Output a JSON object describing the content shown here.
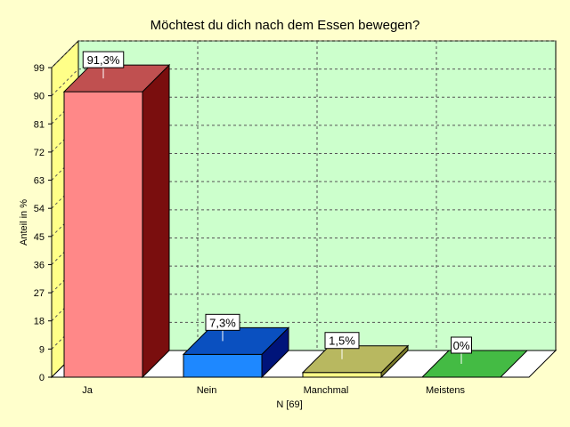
{
  "chart_data": {
    "type": "bar",
    "title": "Möchtest du dich nach dem Essen bewegen?",
    "xlabel": "N [69]",
    "ylabel": "Anteil in %",
    "ylim": [
      0,
      99
    ],
    "yticks": [
      0,
      9,
      18,
      27,
      36,
      45,
      54,
      63,
      72,
      81,
      90,
      99
    ],
    "categories": [
      "Ja",
      "Nein",
      "Manchmal",
      "Meistens"
    ],
    "values": [
      91.3,
      7.3,
      1.5,
      0
    ],
    "data_labels": [
      "91,3%",
      "7,3%",
      "1,5%",
      "0%"
    ],
    "colors": {
      "bar_front": [
        "#ff8888",
        "#1e88ff",
        "#ffff88",
        "#44bb44"
      ],
      "bar_top": [
        "#c05050",
        "#0a50c0",
        "#b8b860",
        "#44bb44"
      ],
      "bar_side": [
        "#7a0e0e",
        "#00147a",
        "#7a7a2a",
        "#2a7a2a"
      ],
      "plot_bg": "#ccffcc",
      "left_wall": "#ffff88",
      "floor": "#ffffff",
      "page_bg": "#ffffcc"
    },
    "grid": true
  }
}
